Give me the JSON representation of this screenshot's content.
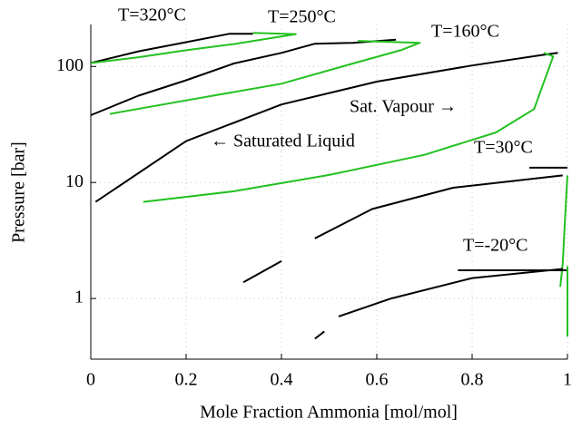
{
  "chart_data": {
    "type": "line",
    "xlabel": "Mole Fraction Ammonia [mol/mol]",
    "ylabel": "Pressure [bar]",
    "xlim": [
      0,
      1
    ],
    "ylim": [
      0.3,
      230
    ],
    "xticks": [
      0,
      0.2,
      0.4,
      0.6,
      0.8,
      1
    ],
    "yticks": [
      1,
      10,
      100
    ],
    "log_y": true,
    "grid": true,
    "annotations": [
      "T=320°C",
      "T=250°C",
      "T=160°C",
      "T=30°C",
      "T=-20°C",
      "Sat. Vapour →",
      "← Saturated Liquid"
    ],
    "series": [
      {
        "color": "#000000",
        "x": [
          0,
          0.1,
          0.2,
          0.29,
          0.34
        ],
        "values": [
          107,
          135,
          162,
          191,
          191
        ]
      },
      {
        "color": "#22c11f",
        "x": [
          0,
          0.1,
          0.2,
          0.3,
          0.43,
          0.34
        ],
        "values": [
          107,
          120,
          138,
          156,
          190,
          195
        ]
      },
      {
        "color": "#000000",
        "x": [
          0,
          0.1,
          0.2,
          0.3,
          0.4,
          0.47,
          0.55,
          0.64
        ],
        "values": [
          38,
          56,
          76,
          106,
          131,
          157,
          160,
          170
        ]
      },
      {
        "color": "#22c11f",
        "x": [
          0.04,
          0.2,
          0.4,
          0.55,
          0.65,
          0.69,
          0.56
        ],
        "values": [
          39,
          51,
          71,
          106,
          138,
          160,
          166
        ]
      },
      {
        "color": "#000000",
        "x": [
          0.01,
          0.2,
          0.4,
          0.6,
          0.8,
          0.95,
          0.98
        ],
        "values": [
          6.8,
          22.7,
          47,
          74,
          102,
          126,
          131
        ]
      },
      {
        "color": "#22c11f",
        "x": [
          0.11,
          0.3,
          0.5,
          0.7,
          0.85,
          0.93,
          0.97,
          0.95
        ],
        "values": [
          6.8,
          8.4,
          11.6,
          17.3,
          27,
          43,
          122,
          131
        ]
      },
      {
        "color": "#000000",
        "x": [
          0.32,
          0.4,
          null,
          0.47,
          0.59,
          0.76,
          0.99
        ],
        "values": [
          1.38,
          2.1,
          null,
          3.3,
          5.9,
          9,
          11.5
        ]
      },
      {
        "color": "#000000",
        "x": [
          0.92,
          1
        ],
        "values": [
          13.4,
          13.4
        ]
      },
      {
        "color": "#22c11f",
        "x": [
          1,
          0.995,
          0.99,
          0.985
        ],
        "values": [
          11.5,
          5,
          2,
          1.26
        ]
      },
      {
        "color": "#000000",
        "x": [
          0.47,
          0.49,
          null,
          0.52,
          0.63,
          0.8,
          0.99
        ],
        "values": [
          0.45,
          0.52,
          null,
          0.7,
          1.0,
          1.5,
          1.8
        ]
      },
      {
        "color": "#000000",
        "x": [
          0.77,
          1
        ],
        "values": [
          1.75,
          1.75
        ]
      },
      {
        "color": "#22c11f",
        "x": [
          1,
          1,
          1
        ],
        "values": [
          1.9,
          1.0,
          0.47
        ]
      }
    ]
  }
}
